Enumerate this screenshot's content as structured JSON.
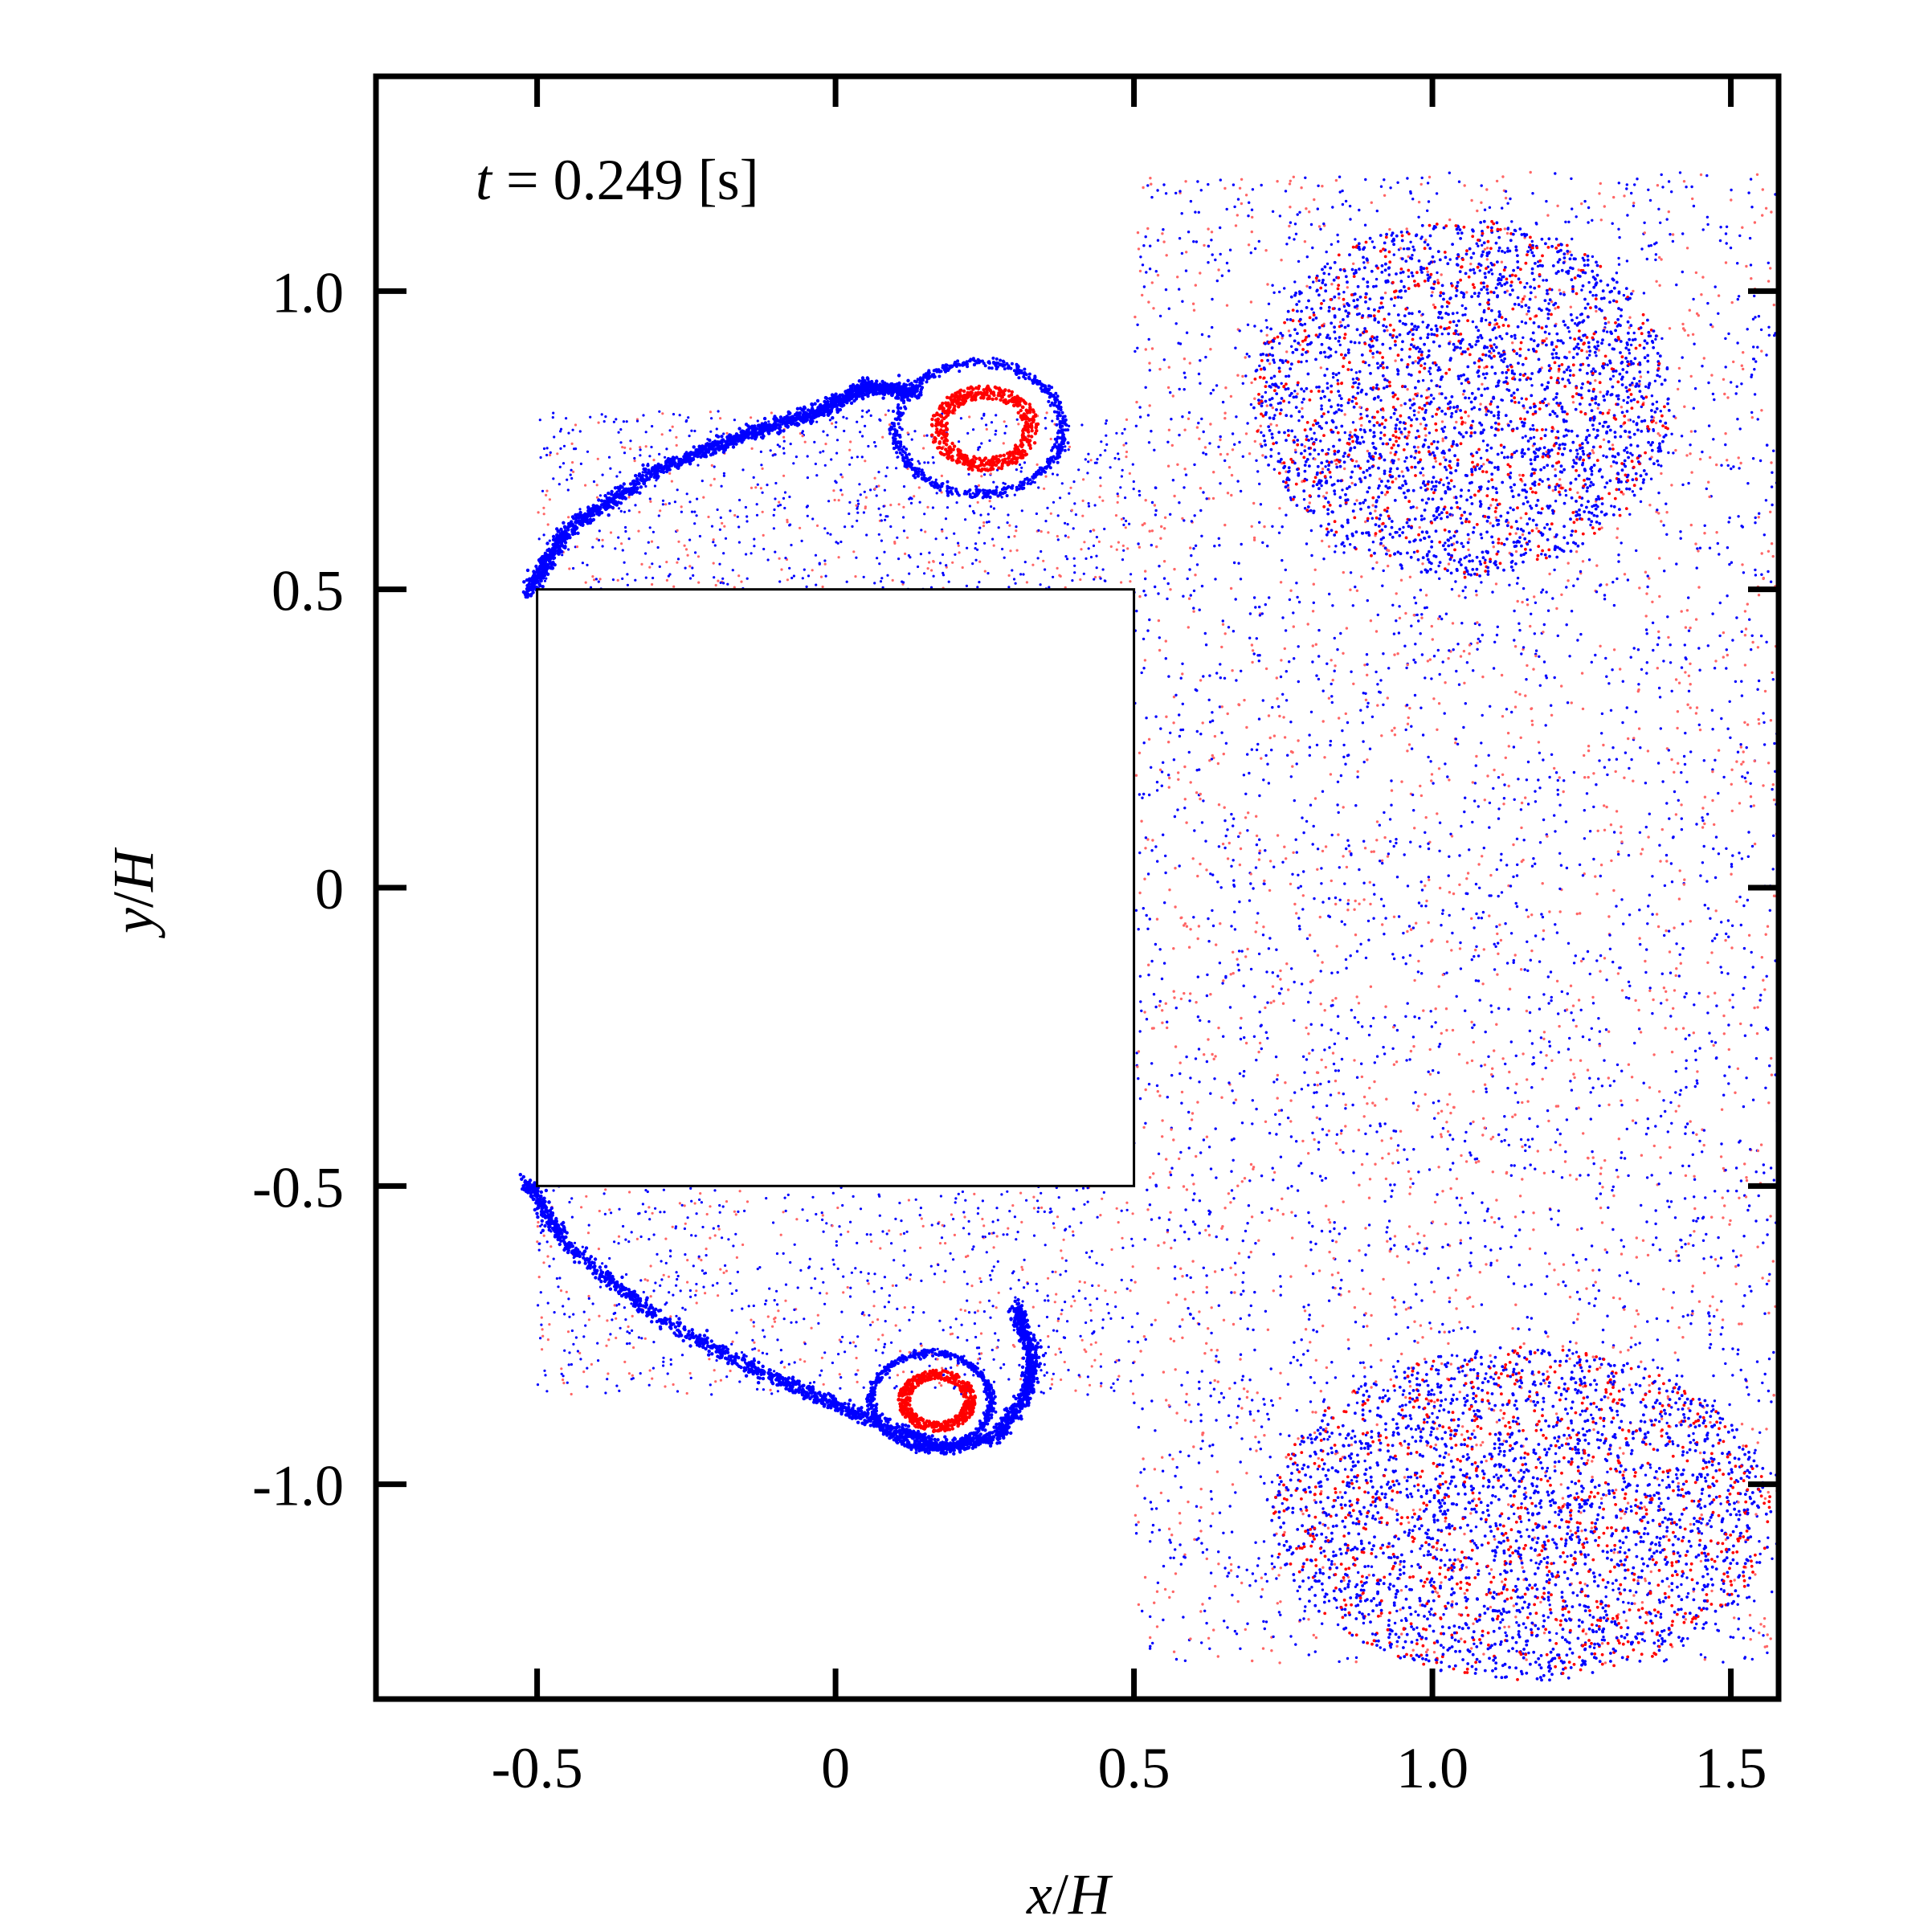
{
  "chart_data": {
    "type": "scatter",
    "title": "",
    "annotation": {
      "var": "t",
      "rest": " = 0.249 [s]"
    },
    "xlabel": {
      "var": "x",
      "rest": "/",
      "var2": "H"
    },
    "ylabel": {
      "var": "y",
      "rest": "/",
      "var2": "H"
    },
    "xlim": [
      -0.77,
      1.58
    ],
    "ylim": [
      -1.36,
      1.36
    ],
    "xticks": [
      {
        "value": -0.5,
        "label": "-0.5"
      },
      {
        "value": 0,
        "label": "0"
      },
      {
        "value": 0.5,
        "label": "0.5"
      },
      {
        "value": 1.0,
        "label": "1.0"
      },
      {
        "value": 1.5,
        "label": "1.5"
      }
    ],
    "yticks": [
      {
        "value": 1.0,
        "label": "1.0"
      },
      {
        "value": 0.5,
        "label": "0.5"
      },
      {
        "value": 0,
        "label": "0"
      },
      {
        "value": -0.5,
        "label": "-0.5"
      },
      {
        "value": -1.0,
        "label": "-1.0"
      }
    ],
    "obstacle": {
      "shape": "square",
      "x": [
        -0.5,
        0.5
      ],
      "y": [
        -0.5,
        0.5
      ]
    },
    "grid": false,
    "legend": "none",
    "series": [
      {
        "color": "#0000ff",
        "description_kind": "blue particles"
      },
      {
        "color": "#ff0000",
        "description_kind": "red particles"
      }
    ],
    "structures": {
      "shear_layer_upper": [
        [
          -0.52,
          0.49
        ],
        [
          -0.45,
          0.6
        ],
        [
          -0.3,
          0.7
        ],
        [
          -0.15,
          0.76
        ],
        [
          -0.02,
          0.8
        ],
        [
          0.05,
          0.84
        ],
        [
          0.14,
          0.83
        ]
      ],
      "shear_layer_lower": [
        [
          -0.52,
          -0.49
        ],
        [
          -0.45,
          -0.6
        ],
        [
          -0.3,
          -0.72
        ],
        [
          -0.15,
          -0.8
        ],
        [
          -0.02,
          -0.86
        ],
        [
          0.08,
          -0.9
        ],
        [
          0.18,
          -0.94
        ],
        [
          0.27,
          -0.92
        ],
        [
          0.32,
          -0.85
        ],
        [
          0.33,
          -0.78
        ],
        [
          0.3,
          -0.7
        ]
      ],
      "vortex_upper_near": {
        "center": [
          0.24,
          0.77
        ],
        "rx": 0.14,
        "ry": 0.11
      },
      "vortex_lower_near": {
        "center": [
          0.16,
          -0.86
        ],
        "rx": 0.1,
        "ry": 0.08
      },
      "cluster_upper_far": {
        "center": [
          1.05,
          0.82
        ],
        "rx": 0.35,
        "ry": 0.3
      },
      "cluster_lower_far": {
        "center": [
          1.15,
          -1.05
        ],
        "rx": 0.42,
        "ry": 0.28
      },
      "wake_region": {
        "x": [
          0.5,
          1.58
        ],
        "y": [
          -1.3,
          1.2
        ]
      }
    }
  }
}
